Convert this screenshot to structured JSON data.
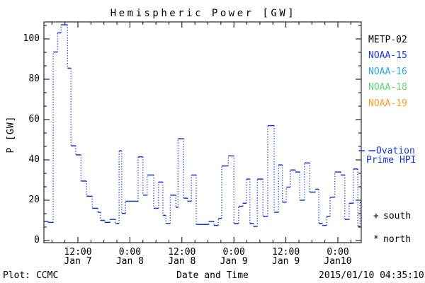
{
  "title": "Hemispheric Power [GW]",
  "y_axis": {
    "label": "P [GW]",
    "tick_values": [
      0,
      20,
      40,
      60,
      80,
      100
    ],
    "range": [
      0,
      108
    ],
    "minor_step": 6.667
  },
  "x_axis": {
    "ticks": [
      {
        "t": 12,
        "time": "12:00",
        "date": "Jan 7"
      },
      {
        "t": 24,
        "time": "0:00",
        "date": "Jan 8"
      },
      {
        "t": 36,
        "time": "12:00",
        "date": "Jan 8"
      },
      {
        "t": 48,
        "time": "0:00",
        "date": "Jan 9"
      },
      {
        "t": 60,
        "time": "12:00",
        "date": "Jan 9"
      },
      {
        "t": 72,
        "time": "0:00",
        "date": "Jan10"
      }
    ],
    "minor_step_hours": 3,
    "range_hours": [
      4.15,
      77.4
    ]
  },
  "legend_satellites": [
    {
      "label": "METP-02",
      "color": "#000000"
    },
    {
      "label": "NOAA-15",
      "color": "#2433ee"
    },
    {
      "label": "NOAA-16",
      "color": "#29a8ee"
    },
    {
      "label": "NOAA-18",
      "color": "#5cd96e"
    },
    {
      "label": "NOAA-19",
      "color": "#ff9b26"
    }
  ],
  "legend_model": {
    "line1": "Ovation",
    "line2": "Prime HPI",
    "color": "#1136d8"
  },
  "legend_symbols": [
    {
      "sym": "+",
      "label": "south"
    },
    {
      "sym": "*",
      "label": "north"
    }
  ],
  "footer": {
    "left": "Plot: CCMC",
    "center": "Date and Time",
    "right": "2015/01/10 04:35:10"
  },
  "chart_data": {
    "type": "line",
    "style": "step-histogram",
    "title": "Hemispheric Power [GW]",
    "xlabel": "Date and Time",
    "ylabel": "P [GW]",
    "ylim": [
      0,
      108
    ],
    "x_unit": "hours since 2015-01-07 00:00 UT",
    "x_end": 77.6,
    "series": [
      {
        "name": "Ovation Prime HPI",
        "color": "#1136d8",
        "points": [
          [
            4.2,
            9.5
          ],
          [
            5.1,
            9
          ],
          [
            6.3,
            93.5
          ],
          [
            7.3,
            103
          ],
          [
            8.1,
            107
          ],
          [
            9.6,
            85.5
          ],
          [
            10.4,
            47
          ],
          [
            11.5,
            42.5
          ],
          [
            12.7,
            29.5
          ],
          [
            14,
            22
          ],
          [
            15.3,
            16
          ],
          [
            16.6,
            14
          ],
          [
            17.2,
            10
          ],
          [
            18.2,
            9
          ],
          [
            19.4,
            10.5
          ],
          [
            20.7,
            8.5
          ],
          [
            21.5,
            44.5
          ],
          [
            22.1,
            13.5
          ],
          [
            23,
            19.5
          ],
          [
            25.9,
            41.5
          ],
          [
            27,
            22.5
          ],
          [
            28,
            32.5
          ],
          [
            29.5,
            16
          ],
          [
            30.6,
            29
          ],
          [
            31.6,
            12.5
          ],
          [
            32.3,
            8.5
          ],
          [
            33.3,
            22.5
          ],
          [
            34.6,
            16.5
          ],
          [
            35.1,
            50.5
          ],
          [
            36.4,
            21
          ],
          [
            37.3,
            19.5
          ],
          [
            38.2,
            32.5
          ],
          [
            39.3,
            8
          ],
          [
            42.2,
            9.5
          ],
          [
            43.4,
            7.5
          ],
          [
            44.4,
            11
          ],
          [
            45.2,
            37
          ],
          [
            46.7,
            42
          ],
          [
            48,
            8.5
          ],
          [
            49.1,
            17
          ],
          [
            50.1,
            18.5
          ],
          [
            50.9,
            30.5
          ],
          [
            51.7,
            8.5
          ],
          [
            52.5,
            7
          ],
          [
            53.4,
            30.5
          ],
          [
            54.7,
            12
          ],
          [
            55.8,
            57
          ],
          [
            57.3,
            14
          ],
          [
            58.3,
            37.5
          ],
          [
            59.2,
            19
          ],
          [
            60.1,
            26.5
          ],
          [
            61,
            35
          ],
          [
            62.2,
            34
          ],
          [
            63.2,
            20
          ],
          [
            64.3,
            38.5
          ],
          [
            65.5,
            24
          ],
          [
            66.8,
            25.5
          ],
          [
            67.6,
            8.5
          ],
          [
            68.4,
            7.5
          ],
          [
            69.4,
            12
          ],
          [
            70.2,
            21.5
          ],
          [
            71.3,
            34
          ],
          [
            72.7,
            32.5
          ],
          [
            73.6,
            10.5
          ],
          [
            74.6,
            18.5
          ],
          [
            75.6,
            35.5
          ],
          [
            76.6,
            7
          ],
          [
            77.1,
            19
          ]
        ]
      }
    ]
  }
}
